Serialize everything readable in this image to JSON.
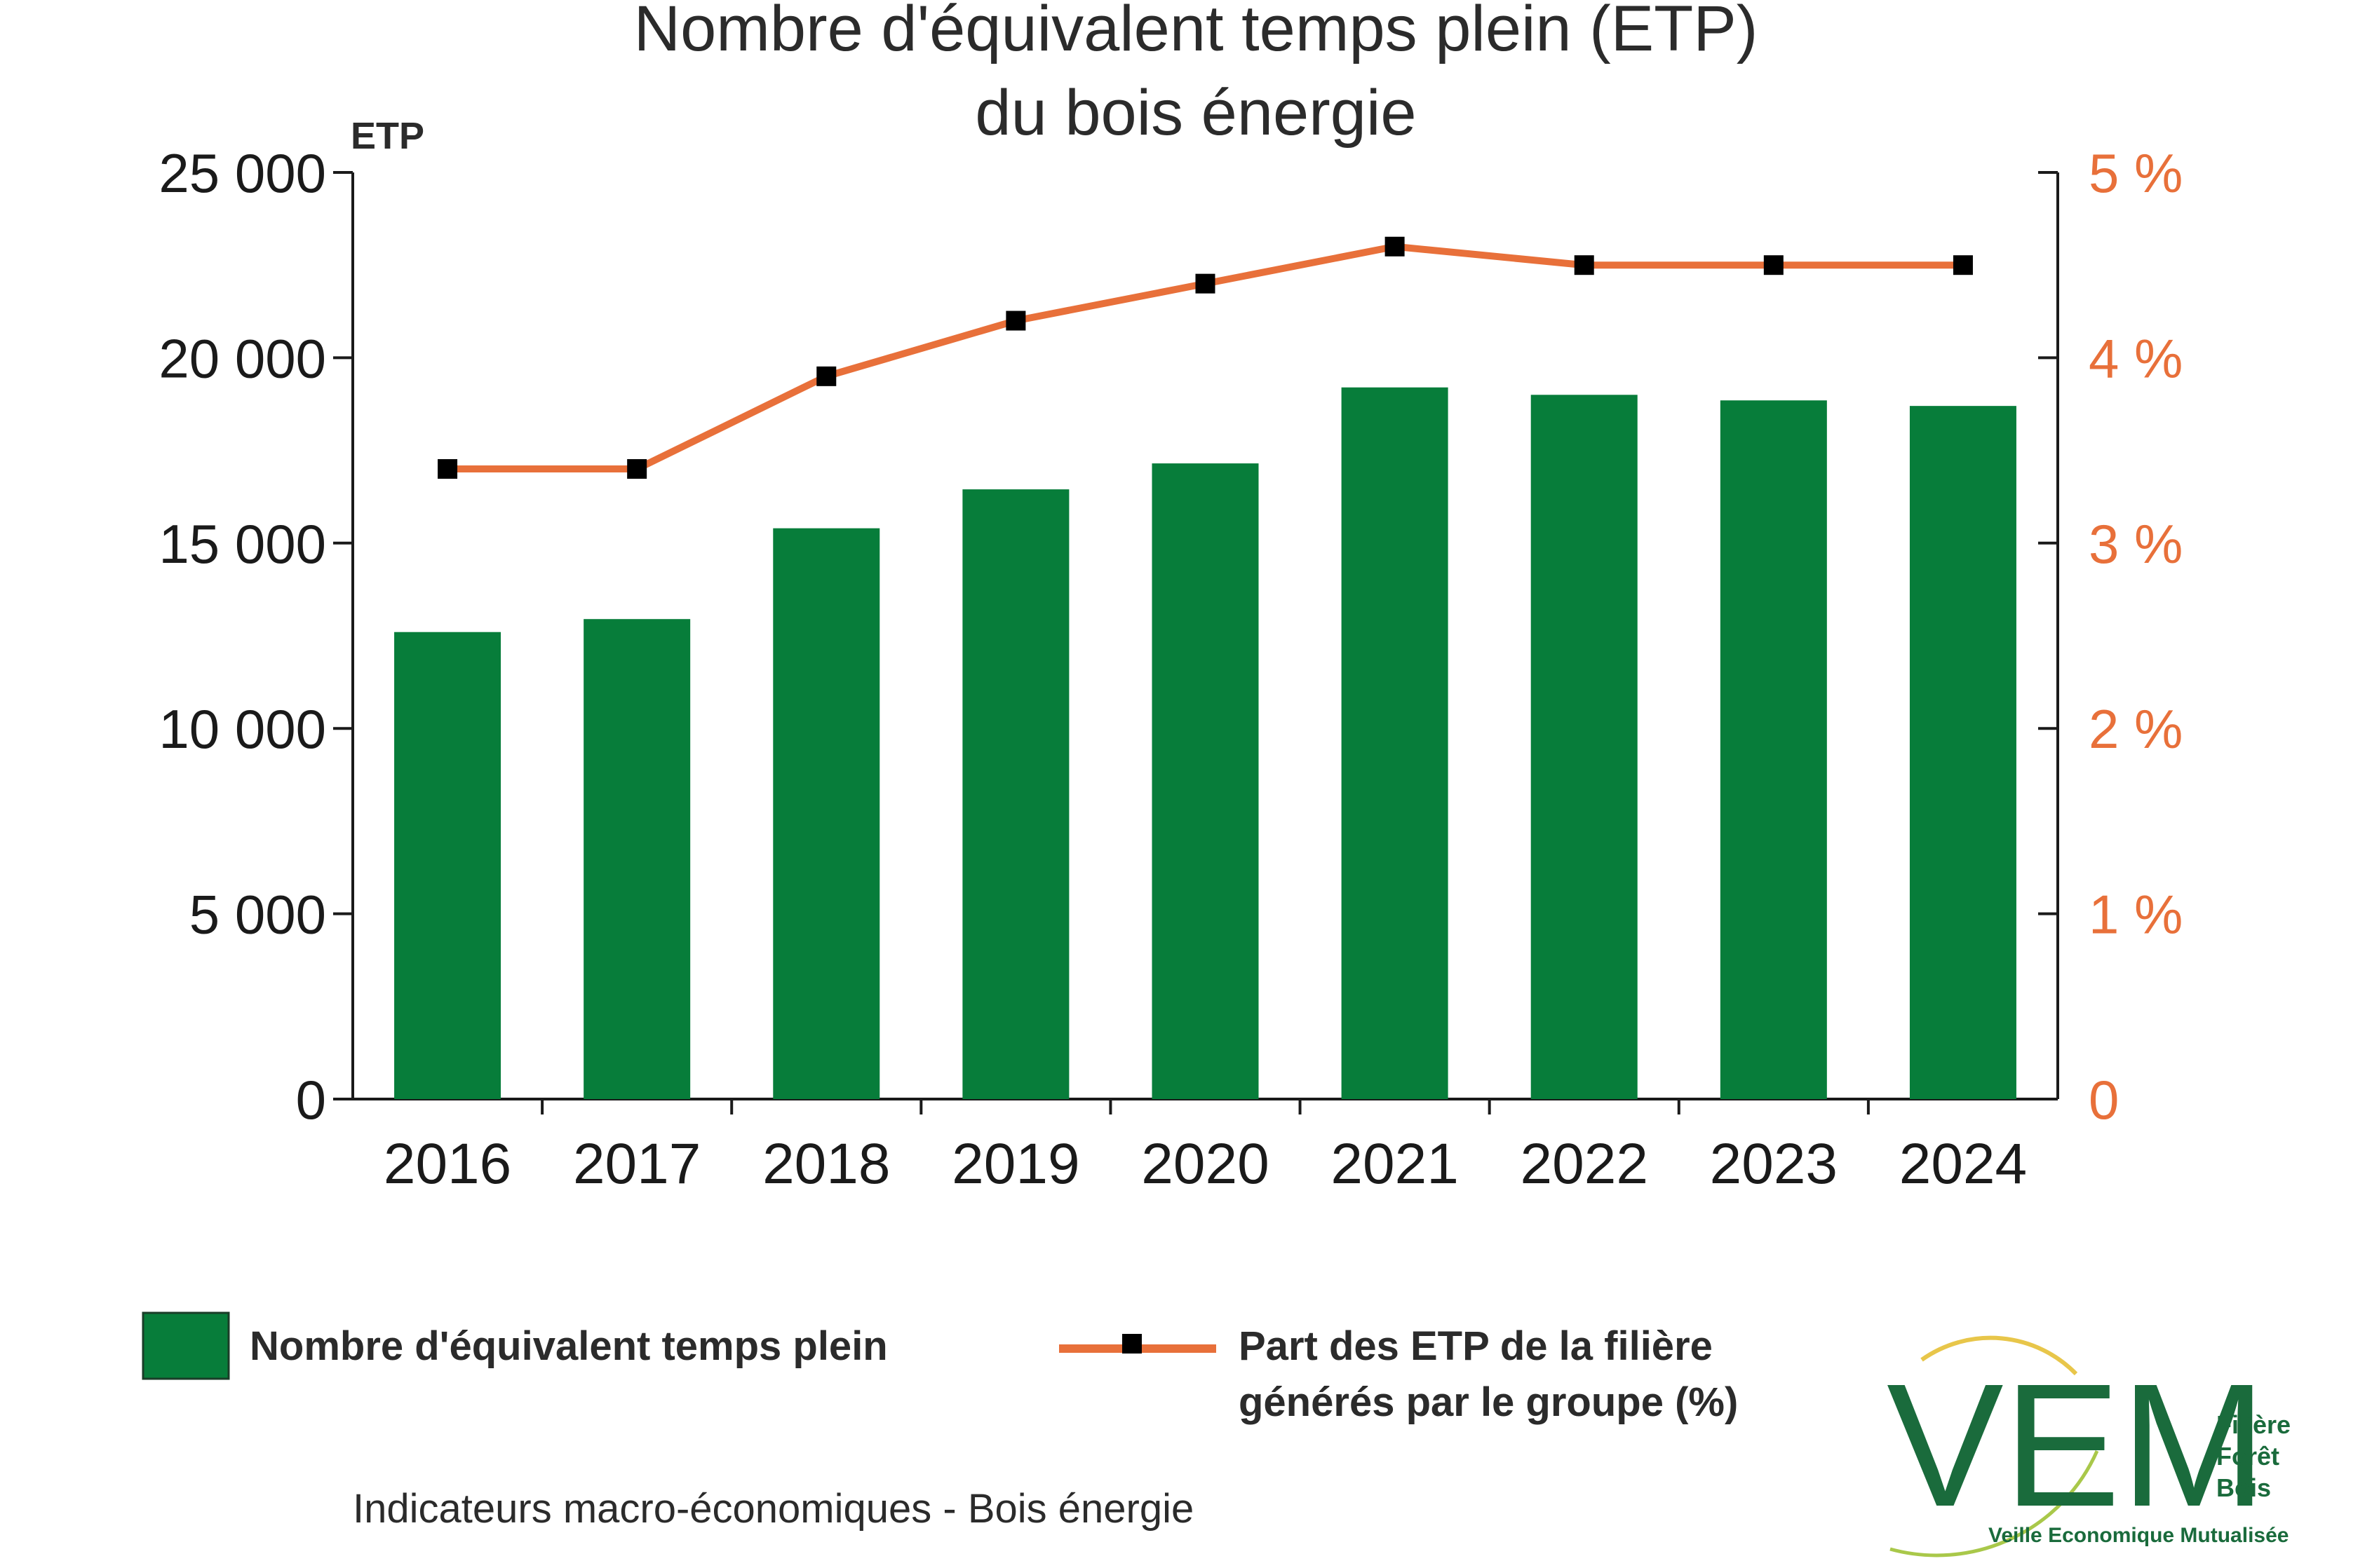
{
  "colors": {
    "bar": "#077d3a",
    "line": "#e8703a",
    "marker": "#000000",
    "axis": "#1a1a1a",
    "right_axis_text": "#e8703a",
    "logo": "#1a6b3c"
  },
  "chart_data": {
    "type": "bar",
    "title_line1": "Nombre d'équivalent temps plein (ETP)",
    "title_line2": "du bois énergie",
    "y_left_unit": "ETP",
    "categories": [
      "2016",
      "2017",
      "2018",
      "2019",
      "2020",
      "2021",
      "2022",
      "2023",
      "2024"
    ],
    "series": [
      {
        "name": "Nombre d'équivalent temps plein",
        "type": "bar",
        "axis": "left",
        "values": [
          12600,
          12950,
          15400,
          16450,
          17150,
          19200,
          19000,
          18850,
          18700
        ]
      },
      {
        "name": "Part des ETP de la filière générés par le groupe (%)",
        "type": "line",
        "axis": "right",
        "values": [
          3.4,
          3.4,
          3.9,
          4.2,
          4.4,
          4.6,
          4.5,
          4.5,
          4.5
        ]
      }
    ],
    "ylim_left": [
      0,
      25000
    ],
    "ylim_right": [
      0,
      5
    ],
    "yticks_left": [
      "0",
      "5 000",
      "10 000",
      "15 000",
      "20 000",
      "25 000"
    ],
    "yticks_right": [
      "0",
      "1 %",
      "2 %",
      "3 %",
      "4 %",
      "5 %"
    ],
    "legend": {
      "bar_label": "Nombre d'équivalent temps plein",
      "line_label_line1": "Part des ETP de la filière",
      "line_label_line2": "générés par le groupe (%)"
    },
    "grid": false
  },
  "footer": {
    "caption": "Indicateurs macro-économiques - Bois énergie"
  },
  "logo": {
    "letters": "VEM",
    "line1": "Filière",
    "line2": "Forêt",
    "line3": "Bois",
    "tagline": "Veille Economique Mutualisée"
  }
}
